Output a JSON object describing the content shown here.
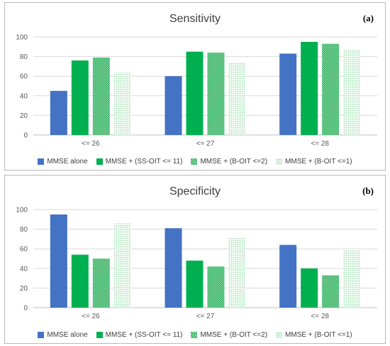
{
  "colors": {
    "s0": "#4472c4",
    "s1": "#00b050",
    "s2": "#5cc884",
    "s3": "#d6f2de",
    "grid": "#d9d9d9",
    "axis": "#bfbfbf"
  },
  "chart_data": [
    {
      "type": "bar",
      "panel_label": "(a)",
      "title": "Sensitivity",
      "xlabel": "",
      "ylabel": "",
      "ylim": [
        0,
        100
      ],
      "yticks": [
        0,
        20,
        40,
        60,
        80,
        100
      ],
      "grid": true,
      "legend_position": "bottom",
      "categories": [
        "<= 26",
        "<= 27",
        "<= 28"
      ],
      "series": [
        {
          "name": "MMSE alone",
          "values": [
            45,
            60,
            83
          ]
        },
        {
          "name": "MMSE + (SS-OIT <= 11)",
          "values": [
            76,
            85,
            95
          ]
        },
        {
          "name": "MMSE + (B-OIT <=2)",
          "values": [
            79,
            84,
            93
          ]
        },
        {
          "name": "MMSE + (B-OIT <=1)",
          "values": [
            64,
            74,
            87
          ]
        }
      ]
    },
    {
      "type": "bar",
      "panel_label": "(b)",
      "title": "Specificity",
      "xlabel": "",
      "ylabel": "",
      "ylim": [
        0,
        100
      ],
      "yticks": [
        0,
        20,
        40,
        60,
        80,
        100
      ],
      "grid": true,
      "legend_position": "bottom",
      "categories": [
        "<= 26",
        "<= 27",
        "<= 28"
      ],
      "series": [
        {
          "name": "MMSE alone",
          "values": [
            95,
            81,
            64
          ]
        },
        {
          "name": "MMSE + (SS-OIT <= 11)",
          "values": [
            54,
            48,
            40
          ]
        },
        {
          "name": "MMSE + (B-OIT <=2)",
          "values": [
            50,
            42,
            33
          ]
        },
        {
          "name": "MMSE + (B-OIT <=1)",
          "values": [
            86,
            71,
            59
          ]
        }
      ]
    }
  ]
}
